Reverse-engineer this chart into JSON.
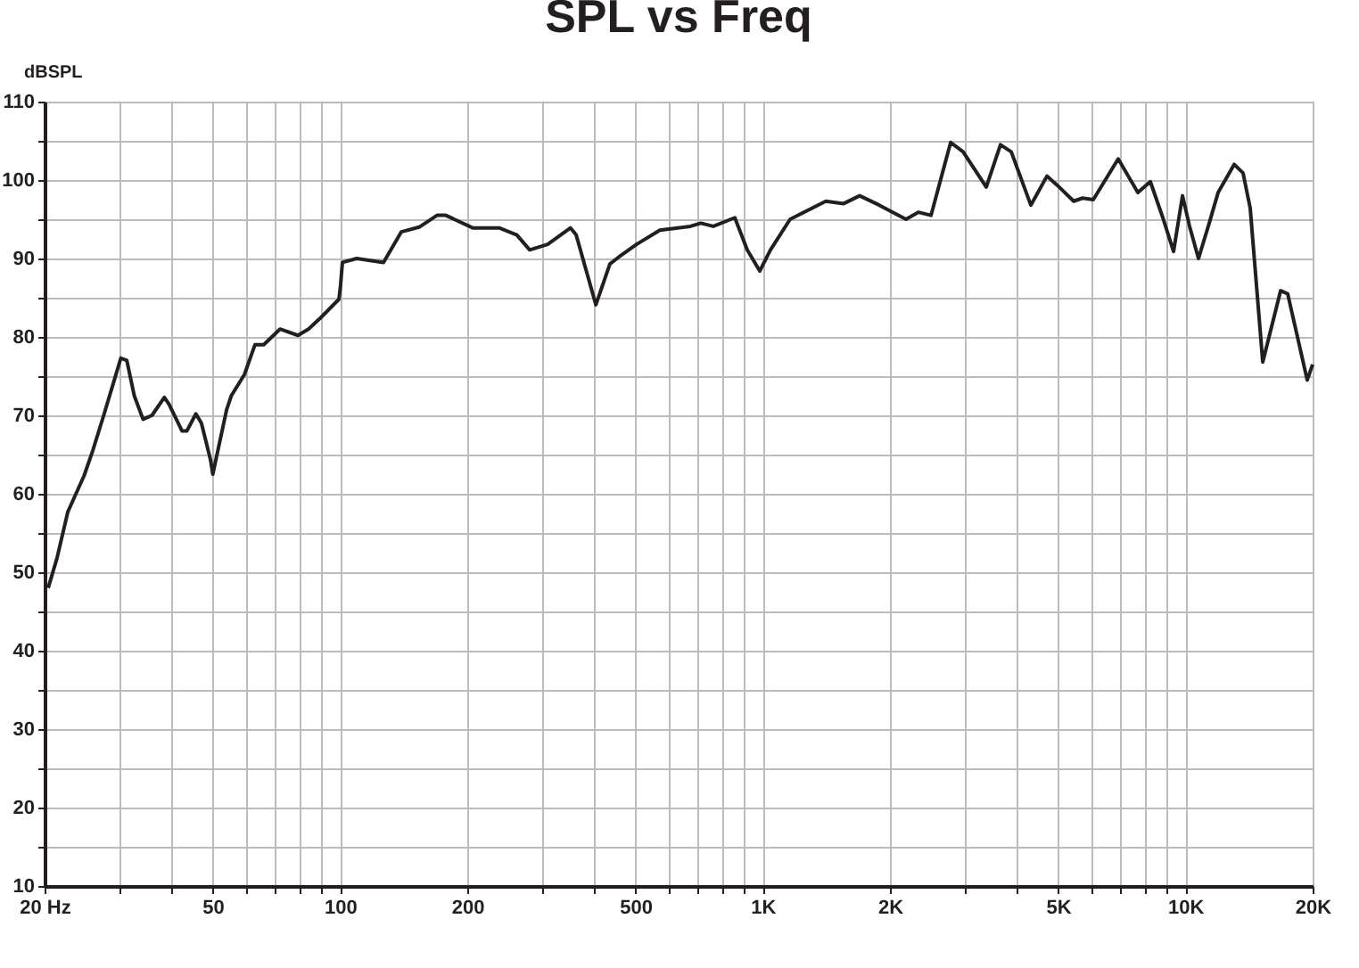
{
  "chart_data": {
    "type": "line",
    "title": "SPL vs Freq",
    "ylabel": "dBSPL",
    "log": "x",
    "grid": true,
    "marker": "none",
    "line_style": "solid",
    "legend": false,
    "xlim": [
      20,
      20000
    ],
    "ylim": [
      10,
      110
    ],
    "xticks": [
      {
        "value": 20,
        "label": "20  Hz"
      },
      {
        "value": 30,
        "label": null
      },
      {
        "value": 40,
        "label": null
      },
      50,
      {
        "value": 60,
        "label": null
      },
      {
        "value": 70,
        "label": null
      },
      {
        "value": 80,
        "label": null
      },
      {
        "value": 90,
        "label": null
      },
      100,
      200,
      {
        "value": 300,
        "label": null
      },
      {
        "value": 400,
        "label": null
      },
      500,
      {
        "value": 600,
        "label": null
      },
      {
        "value": 700,
        "label": null
      },
      {
        "value": 800,
        "label": null
      },
      {
        "value": 900,
        "label": null
      },
      {
        "value": 1000,
        "label": "1K"
      },
      {
        "value": 2000,
        "label": "2K"
      },
      {
        "value": 3000,
        "label": null
      },
      {
        "value": 4000,
        "label": null
      },
      {
        "value": 5000,
        "label": "5K"
      },
      {
        "value": 6000,
        "label": null
      },
      {
        "value": 7000,
        "label": null
      },
      {
        "value": 8000,
        "label": null
      },
      {
        "value": 9000,
        "label": null
      },
      {
        "value": 10000,
        "label": "10K"
      },
      {
        "value": 20000,
        "label": "20K"
      }
    ],
    "yticks": [
      10,
      {
        "value": 15,
        "label": null
      },
      20,
      {
        "value": 25,
        "label": null
      },
      30,
      {
        "value": 35,
        "label": null
      },
      40,
      {
        "value": 45,
        "label": null
      },
      50,
      {
        "value": 55,
        "label": null
      },
      60,
      {
        "value": 65,
        "label": null
      },
      70,
      {
        "value": 75,
        "label": null
      },
      80,
      {
        "value": 85,
        "label": null
      },
      90,
      {
        "value": 95,
        "label": null
      },
      100,
      {
        "value": 105,
        "label": null
      },
      110
    ],
    "series": [
      {
        "color": "#231f20",
        "x": [
          20.4,
          21.4,
          22.7,
          24.8,
          26.0,
          27.6,
          28.9,
          30.3,
          31.3,
          32.6,
          34.2,
          35.9,
          38.4,
          39.4,
          42.3,
          43.4,
          45.6,
          47.0,
          49.4,
          50,
          53.9,
          55.3,
          59.4,
          62.9,
          66.0,
          72.1,
          79.5,
          84.2,
          90.2,
          99.4,
          100.3,
          101.3,
          109.5,
          126.7,
          139.7,
          153.9,
          169.6,
          178,
          206,
          238,
          262,
          281,
          310,
          351,
          362,
          403,
          435,
          457,
          503,
          571,
          629,
          674,
          714,
          764,
          859,
          919,
          984,
          1043,
          1161,
          1410,
          1554,
          1696,
          1887,
          2183,
          2337,
          2502,
          2784,
          2980,
          3380,
          3652,
          3873,
          4309,
          4703,
          4985,
          5441,
          5711,
          6055,
          6935,
          7720,
          8262,
          8844,
          9375,
          9845,
          10230,
          10740,
          11385,
          11950,
          13045,
          13690,
          14235,
          15240,
          16800,
          17460,
          19420,
          20000
        ],
        "values": [
          48,
          51.8,
          57.7,
          62.3,
          65.5,
          70,
          73.6,
          77.3,
          77,
          72.5,
          69.5,
          70,
          72.3,
          71.4,
          68,
          68,
          70.2,
          69,
          64.3,
          62.5,
          70.7,
          72.5,
          75.2,
          79,
          79,
          81,
          80.2,
          81,
          82.5,
          84.8,
          86.6,
          89.5,
          90,
          89.5,
          93.4,
          94,
          95.5,
          95.5,
          93.9,
          93.9,
          93,
          91.1,
          91.8,
          93.9,
          93,
          84.1,
          89.3,
          90.2,
          91.8,
          93.6,
          93.9,
          94.1,
          94.5,
          94.1,
          95.2,
          91.1,
          88.4,
          91.1,
          95,
          97.3,
          97,
          98,
          96.8,
          95,
          95.9,
          95.5,
          104.8,
          103.6,
          99.1,
          104.5,
          103.6,
          96.8,
          100.5,
          99.3,
          97.3,
          97.7,
          97.5,
          102.7,
          98.4,
          99.8,
          95.2,
          90.9,
          98,
          94.1,
          90,
          94.5,
          98.4,
          102,
          100.9,
          96.4,
          76.8,
          85.9,
          85.5,
          74.5,
          76.5
        ]
      }
    ]
  }
}
